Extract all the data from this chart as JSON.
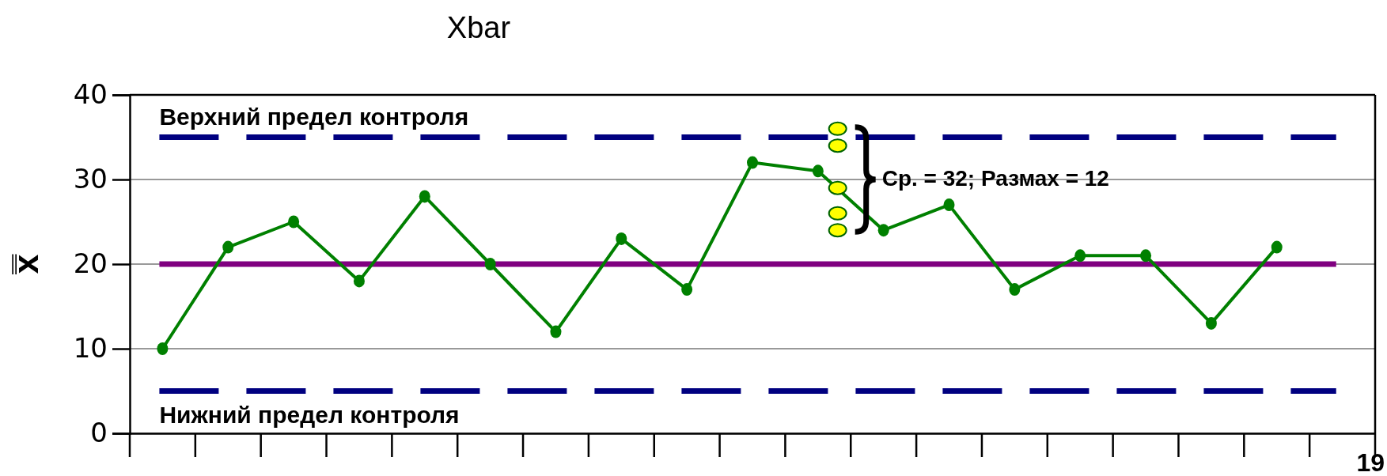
{
  "chart_data": {
    "type": "line",
    "title": "Xbar",
    "ylabel": "x̿",
    "categories": [
      null,
      null,
      null,
      null,
      null,
      null,
      null,
      null,
      null,
      null,
      null,
      null,
      null,
      null,
      null,
      null,
      null,
      null,
      null
    ],
    "ylim": [
      0,
      40
    ],
    "yticks": [
      0,
      10,
      20,
      30,
      40
    ],
    "grid": "y",
    "marker": "circle",
    "tick_labels": "y",
    "series": [
      {
        "color": "#008000",
        "values": [
          10,
          22,
          25,
          18,
          28,
          20,
          12,
          23,
          17,
          32,
          31,
          24,
          27,
          17,
          21,
          21,
          13,
          22,
          null
        ]
      },
      {
        "type": "scatter",
        "color": "#ffff00",
        "values": [
          null,
          null,
          null,
          null,
          null,
          null,
          null,
          null,
          null,
          null,
          36,
          null,
          null,
          null,
          null,
          null,
          null,
          null,
          null
        ]
      },
      {
        "type": "scatter",
        "color": "#ffff00",
        "values": [
          null,
          null,
          null,
          null,
          null,
          null,
          null,
          null,
          null,
          null,
          34,
          null,
          null,
          null,
          null,
          null,
          null,
          null,
          null
        ]
      },
      {
        "type": "scatter",
        "color": "#ffff00",
        "values": [
          null,
          null,
          null,
          null,
          null,
          null,
          null,
          null,
          null,
          null,
          29,
          null,
          null,
          null,
          null,
          null,
          null,
          null,
          null
        ]
      },
      {
        "type": "scatter",
        "color": "#ffff00",
        "values": [
          null,
          null,
          null,
          null,
          null,
          null,
          null,
          null,
          null,
          null,
          26,
          null,
          null,
          null,
          null,
          null,
          null,
          null,
          null
        ]
      },
      {
        "type": "scatter",
        "color": "#ffff00",
        "values": [
          null,
          null,
          null,
          null,
          null,
          null,
          null,
          null,
          null,
          null,
          24,
          null,
          null,
          null,
          null,
          null,
          null,
          null,
          null
        ]
      }
    ],
    "ref_lines": [
      {
        "axis": "y",
        "value": 35,
        "label": "Верхний предел контроля",
        "color": "#000080",
        "line_style": "dashed"
      },
      {
        "axis": "y",
        "value": 20,
        "color": "#800080",
        "line_style": "solid"
      },
      {
        "axis": "y",
        "value": 5,
        "label": "Нижний предел контроля",
        "color": "#000080",
        "line_style": "dashed"
      }
    ],
    "annotations": [
      "Ср. = 32; Размах = 12",
      "19"
    ]
  }
}
